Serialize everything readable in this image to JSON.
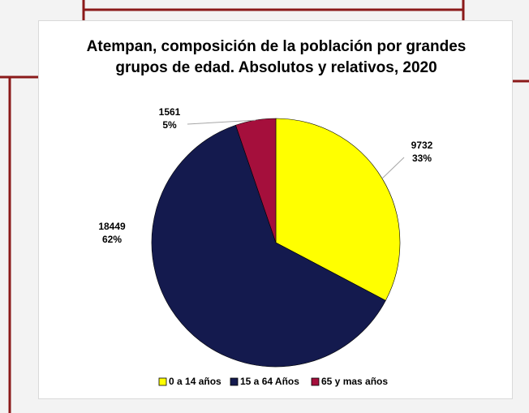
{
  "chart_data": {
    "type": "pie",
    "title": "Atempan, composición de la población por grandes grupos de edad. Absolutos y relativos, 2020",
    "categories": [
      "0 a 14 años",
      "15 a 64 Años",
      "65 y mas años"
    ],
    "values": [
      9732,
      18449,
      1561
    ],
    "percent_labels": [
      "33%",
      "62%",
      "5%"
    ],
    "colors": [
      "#ffff00",
      "#141a4e",
      "#a50f3c"
    ],
    "legend": "bottom"
  }
}
